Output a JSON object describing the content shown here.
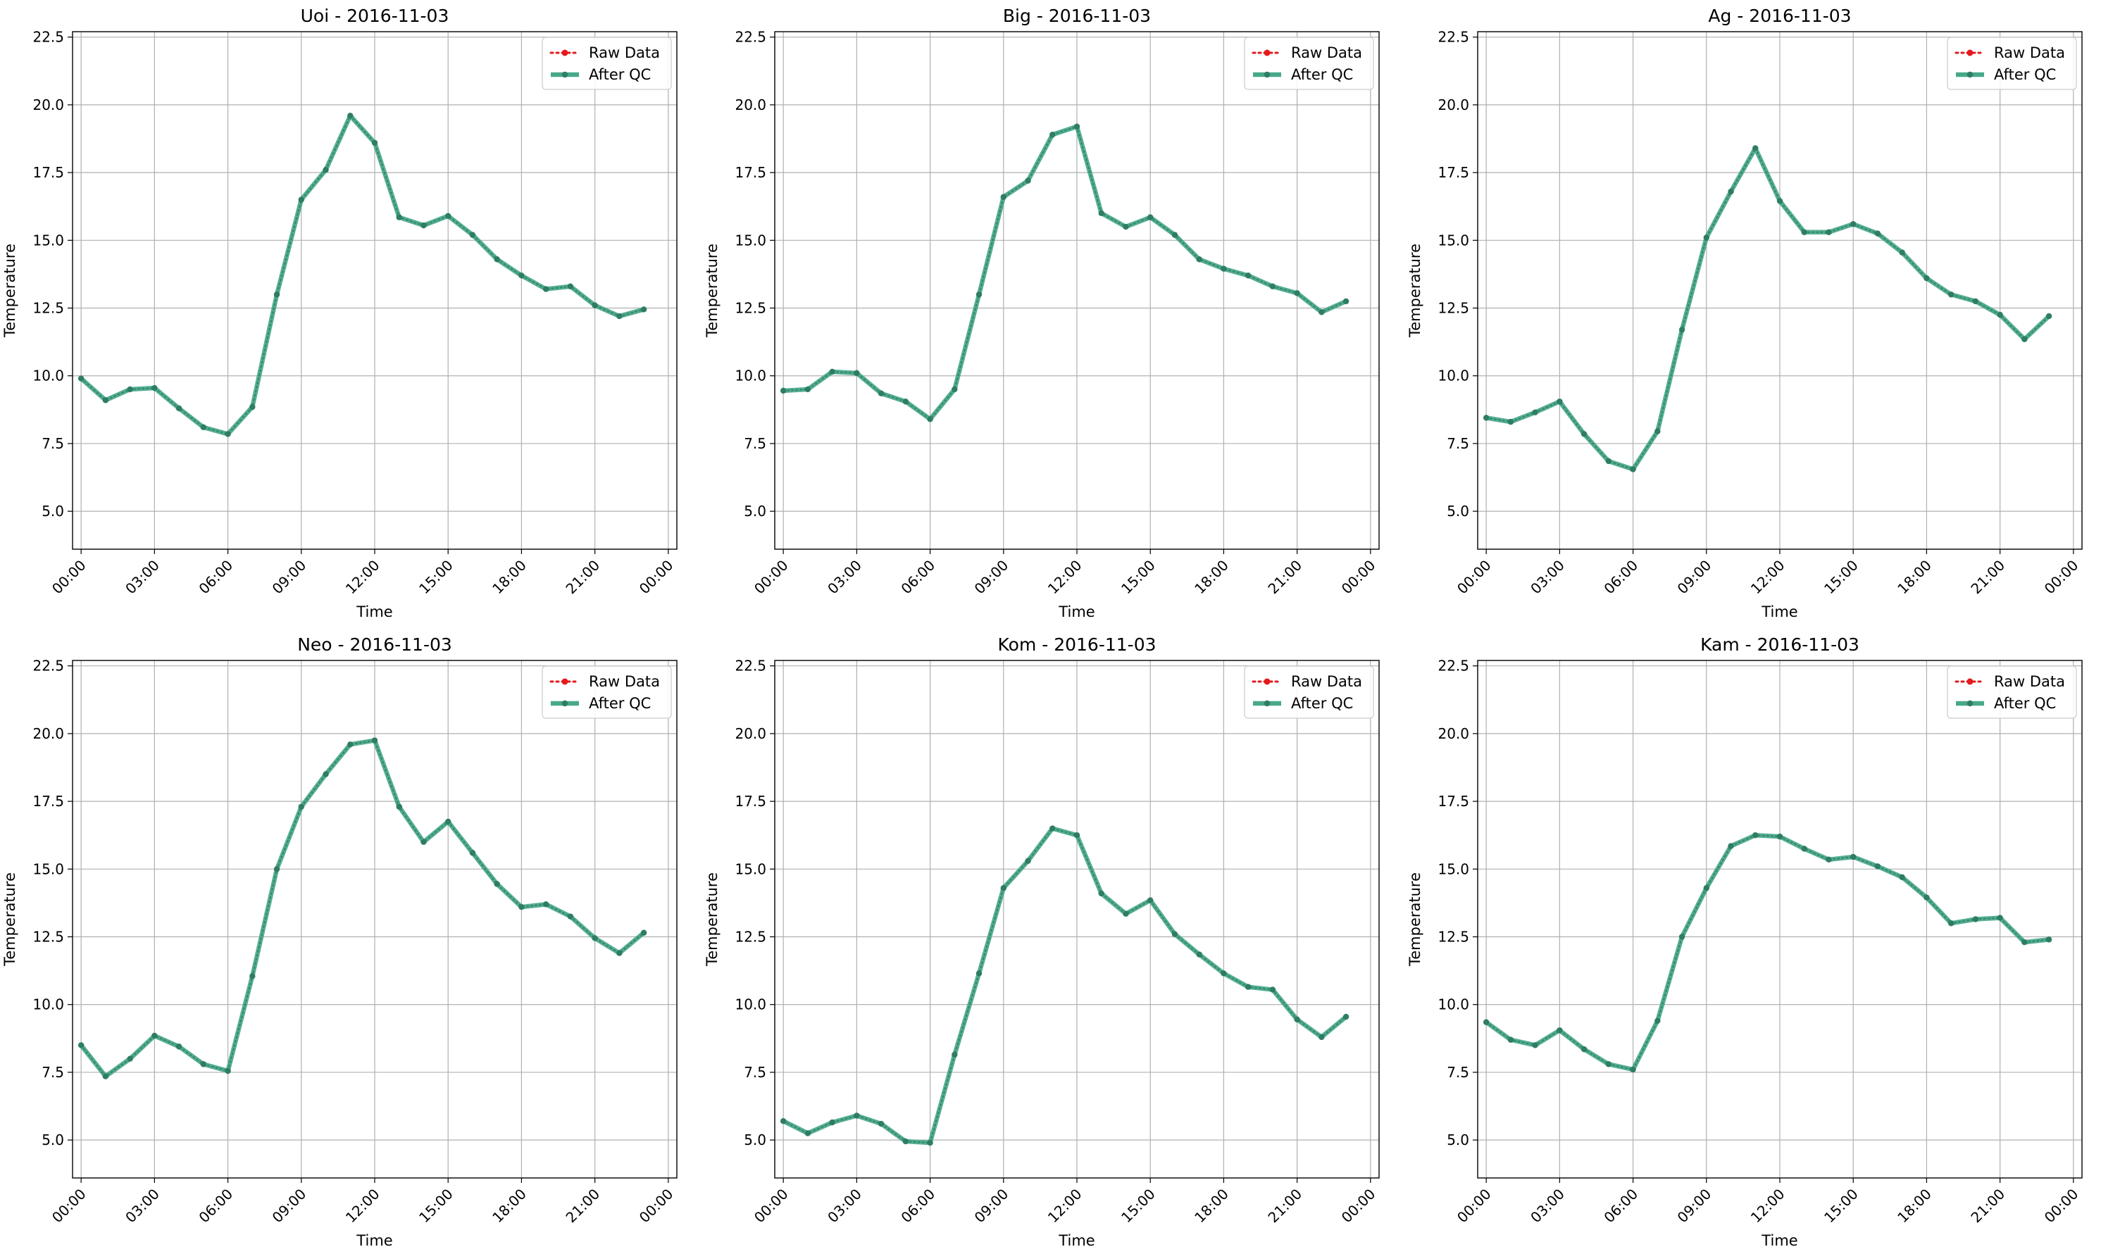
{
  "figure": {
    "colors": {
      "raw": "#e41a1c",
      "qc_line": "#47a88a",
      "qc_marker": "#2e7d64",
      "grid": "#b0b0b0",
      "spine": "#000000"
    }
  },
  "chart_data": [
    {
      "type": "line",
      "title": "Uoi - 2016-11-03",
      "xlabel": "Time",
      "ylabel": "Temperature",
      "x": [
        "00:00",
        "01:00",
        "02:00",
        "03:00",
        "04:00",
        "05:00",
        "06:00",
        "07:00",
        "08:00",
        "09:00",
        "10:00",
        "11:00",
        "12:00",
        "13:00",
        "14:00",
        "15:00",
        "16:00",
        "17:00",
        "18:00",
        "19:00",
        "20:00",
        "21:00",
        "22:00",
        "23:00"
      ],
      "xticks": [
        "00:00",
        "03:00",
        "06:00",
        "09:00",
        "12:00",
        "15:00",
        "18:00",
        "21:00",
        "00:00"
      ],
      "yticks": [
        "5.0",
        "7.5",
        "10.0",
        "12.5",
        "15.0",
        "17.5",
        "20.0",
        "22.5"
      ],
      "ylim": [
        3.6,
        22.7
      ],
      "grid": true,
      "legend_position": "top-right",
      "series": [
        {
          "name": "Raw Data",
          "style": "dotted",
          "values": [
            9.9,
            9.1,
            9.5,
            9.55,
            8.8,
            8.1,
            7.85,
            8.85,
            13.0,
            16.5,
            17.6,
            19.6,
            18.6,
            15.85,
            15.55,
            15.9,
            15.2,
            14.3,
            13.7,
            13.2,
            13.3,
            12.6,
            12.2,
            12.45
          ]
        },
        {
          "name": "After QC",
          "style": "solid",
          "values": [
            9.9,
            9.1,
            9.5,
            9.55,
            8.8,
            8.1,
            7.85,
            8.85,
            13.0,
            16.5,
            17.6,
            19.6,
            18.6,
            15.85,
            15.55,
            15.9,
            15.2,
            14.3,
            13.7,
            13.2,
            13.3,
            12.6,
            12.2,
            12.45
          ]
        }
      ]
    },
    {
      "type": "line",
      "title": "Big - 2016-11-03",
      "xlabel": "Time",
      "ylabel": "Temperature",
      "x": [
        "00:00",
        "01:00",
        "02:00",
        "03:00",
        "04:00",
        "05:00",
        "06:00",
        "07:00",
        "08:00",
        "09:00",
        "10:00",
        "11:00",
        "12:00",
        "13:00",
        "14:00",
        "15:00",
        "16:00",
        "17:00",
        "18:00",
        "19:00",
        "20:00",
        "21:00",
        "22:00",
        "23:00"
      ],
      "xticks": [
        "00:00",
        "03:00",
        "06:00",
        "09:00",
        "12:00",
        "15:00",
        "18:00",
        "21:00",
        "00:00"
      ],
      "yticks": [
        "5.0",
        "7.5",
        "10.0",
        "12.5",
        "15.0",
        "17.5",
        "20.0",
        "22.5"
      ],
      "ylim": [
        3.6,
        22.7
      ],
      "grid": true,
      "legend_position": "top-right",
      "series": [
        {
          "name": "Raw Data",
          "style": "dotted",
          "values": [
            9.45,
            9.5,
            10.15,
            10.1,
            9.35,
            9.05,
            8.4,
            9.5,
            13.0,
            16.6,
            17.2,
            18.9,
            19.2,
            16.0,
            15.5,
            15.85,
            15.2,
            14.3,
            13.95,
            13.7,
            13.3,
            13.05,
            12.35,
            12.75
          ]
        },
        {
          "name": "After QC",
          "style": "solid",
          "values": [
            9.45,
            9.5,
            10.15,
            10.1,
            9.35,
            9.05,
            8.4,
            9.5,
            13.0,
            16.6,
            17.2,
            18.9,
            19.2,
            16.0,
            15.5,
            15.85,
            15.2,
            14.3,
            13.95,
            13.7,
            13.3,
            13.05,
            12.35,
            12.75
          ]
        }
      ]
    },
    {
      "type": "line",
      "title": "Ag - 2016-11-03",
      "xlabel": "Time",
      "ylabel": "Temperature",
      "x": [
        "00:00",
        "01:00",
        "02:00",
        "03:00",
        "04:00",
        "05:00",
        "06:00",
        "07:00",
        "08:00",
        "09:00",
        "10:00",
        "11:00",
        "12:00",
        "13:00",
        "14:00",
        "15:00",
        "16:00",
        "17:00",
        "18:00",
        "19:00",
        "20:00",
        "21:00",
        "22:00",
        "23:00"
      ],
      "xticks": [
        "00:00",
        "03:00",
        "06:00",
        "09:00",
        "12:00",
        "15:00",
        "18:00",
        "21:00",
        "00:00"
      ],
      "yticks": [
        "5.0",
        "7.5",
        "10.0",
        "12.5",
        "15.0",
        "17.5",
        "20.0",
        "22.5"
      ],
      "ylim": [
        3.6,
        22.7
      ],
      "grid": true,
      "legend_position": "top-right",
      "series": [
        {
          "name": "Raw Data",
          "style": "dotted",
          "values": [
            8.45,
            8.3,
            8.65,
            9.05,
            7.85,
            6.85,
            6.55,
            7.95,
            11.7,
            15.1,
            16.8,
            18.4,
            16.45,
            15.3,
            15.3,
            15.6,
            15.25,
            14.55,
            13.6,
            13.0,
            12.75,
            12.25,
            11.35,
            12.2
          ]
        },
        {
          "name": "After QC",
          "style": "solid",
          "values": [
            8.45,
            8.3,
            8.65,
            9.05,
            7.85,
            6.85,
            6.55,
            7.95,
            11.7,
            15.1,
            16.8,
            18.4,
            16.45,
            15.3,
            15.3,
            15.6,
            15.25,
            14.55,
            13.6,
            13.0,
            12.75,
            12.25,
            11.35,
            12.2
          ]
        }
      ]
    },
    {
      "type": "line",
      "title": "Neo - 2016-11-03",
      "xlabel": "Time",
      "ylabel": "Temperature",
      "x": [
        "00:00",
        "01:00",
        "02:00",
        "03:00",
        "04:00",
        "05:00",
        "06:00",
        "07:00",
        "08:00",
        "09:00",
        "10:00",
        "11:00",
        "12:00",
        "13:00",
        "14:00",
        "15:00",
        "16:00",
        "17:00",
        "18:00",
        "19:00",
        "20:00",
        "21:00",
        "22:00",
        "23:00"
      ],
      "xticks": [
        "00:00",
        "03:00",
        "06:00",
        "09:00",
        "12:00",
        "15:00",
        "18:00",
        "21:00",
        "00:00"
      ],
      "yticks": [
        "5.0",
        "7.5",
        "10.0",
        "12.5",
        "15.0",
        "17.5",
        "20.0",
        "22.5"
      ],
      "ylim": [
        3.6,
        22.7
      ],
      "grid": true,
      "legend_position": "top-right",
      "series": [
        {
          "name": "Raw Data",
          "style": "dotted",
          "values": [
            8.5,
            7.35,
            8.0,
            8.85,
            8.45,
            7.8,
            7.55,
            11.05,
            15.0,
            17.3,
            18.5,
            19.6,
            19.75,
            17.3,
            16.0,
            16.75,
            15.6,
            14.45,
            13.6,
            13.7,
            13.25,
            12.45,
            11.9,
            12.65
          ]
        },
        {
          "name": "After QC",
          "style": "solid",
          "values": [
            8.5,
            7.35,
            8.0,
            8.85,
            8.45,
            7.8,
            7.55,
            11.05,
            15.0,
            17.3,
            18.5,
            19.6,
            19.75,
            17.3,
            16.0,
            16.75,
            15.6,
            14.45,
            13.6,
            13.7,
            13.25,
            12.45,
            11.9,
            12.65
          ]
        }
      ]
    },
    {
      "type": "line",
      "title": "Kom - 2016-11-03",
      "xlabel": "Time",
      "ylabel": "Temperature",
      "x": [
        "00:00",
        "01:00",
        "02:00",
        "03:00",
        "04:00",
        "05:00",
        "06:00",
        "07:00",
        "08:00",
        "09:00",
        "10:00",
        "11:00",
        "12:00",
        "13:00",
        "14:00",
        "15:00",
        "16:00",
        "17:00",
        "18:00",
        "19:00",
        "20:00",
        "21:00",
        "22:00",
        "23:00"
      ],
      "xticks": [
        "00:00",
        "03:00",
        "06:00",
        "09:00",
        "12:00",
        "15:00",
        "18:00",
        "21:00",
        "00:00"
      ],
      "yticks": [
        "5.0",
        "7.5",
        "10.0",
        "12.5",
        "15.0",
        "17.5",
        "20.0",
        "22.5"
      ],
      "ylim": [
        3.6,
        22.7
      ],
      "grid": true,
      "legend_position": "top-right",
      "series": [
        {
          "name": "Raw Data",
          "style": "dotted",
          "values": [
            5.7,
            5.25,
            5.65,
            5.9,
            5.6,
            4.95,
            4.9,
            8.15,
            11.15,
            14.3,
            15.3,
            16.5,
            16.25,
            14.1,
            13.35,
            13.85,
            12.6,
            11.85,
            11.15,
            10.65,
            10.55,
            9.45,
            8.8,
            9.55
          ]
        },
        {
          "name": "After QC",
          "style": "solid",
          "values": [
            5.7,
            5.25,
            5.65,
            5.9,
            5.6,
            4.95,
            4.9,
            8.15,
            11.15,
            14.3,
            15.3,
            16.5,
            16.25,
            14.1,
            13.35,
            13.85,
            12.6,
            11.85,
            11.15,
            10.65,
            10.55,
            9.45,
            8.8,
            9.55
          ]
        }
      ]
    },
    {
      "type": "line",
      "title": "Kam - 2016-11-03",
      "xlabel": "Time",
      "ylabel": "Temperature",
      "x": [
        "00:00",
        "01:00",
        "02:00",
        "03:00",
        "04:00",
        "05:00",
        "06:00",
        "07:00",
        "08:00",
        "09:00",
        "10:00",
        "11:00",
        "12:00",
        "13:00",
        "14:00",
        "15:00",
        "16:00",
        "17:00",
        "18:00",
        "19:00",
        "20:00",
        "21:00",
        "22:00",
        "23:00"
      ],
      "xticks": [
        "00:00",
        "03:00",
        "06:00",
        "09:00",
        "12:00",
        "15:00",
        "18:00",
        "21:00",
        "00:00"
      ],
      "yticks": [
        "5.0",
        "7.5",
        "10.0",
        "12.5",
        "15.0",
        "17.5",
        "20.0",
        "22.5"
      ],
      "ylim": [
        3.6,
        22.7
      ],
      "grid": true,
      "legend_position": "top-right",
      "series": [
        {
          "name": "Raw Data",
          "style": "dotted",
          "values": [
            9.35,
            8.7,
            8.5,
            9.05,
            8.35,
            7.8,
            7.6,
            9.4,
            12.5,
            14.3,
            15.85,
            16.25,
            16.2,
            15.75,
            15.35,
            15.45,
            15.1,
            14.7,
            13.95,
            13.0,
            13.15,
            13.2,
            12.3,
            12.4
          ]
        },
        {
          "name": "After QC",
          "style": "solid",
          "values": [
            9.35,
            8.7,
            8.5,
            9.05,
            8.35,
            7.8,
            7.6,
            9.4,
            12.5,
            14.3,
            15.85,
            16.25,
            16.2,
            15.75,
            15.35,
            15.45,
            15.1,
            14.7,
            13.95,
            13.0,
            13.15,
            13.2,
            12.3,
            12.4
          ]
        }
      ]
    }
  ]
}
